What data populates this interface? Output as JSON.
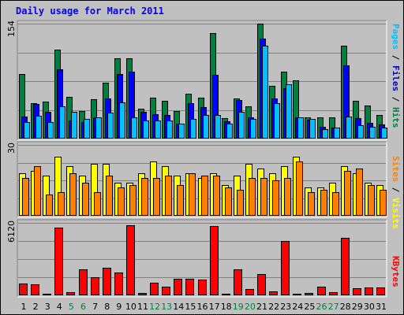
{
  "title": "Daily usage for March 2011",
  "panels": {
    "top": {
      "ymax_label": "154",
      "side_label": [
        {
          "text": "Pages",
          "color": "#00c0ff"
        },
        {
          "text": " / ",
          "color": "#000000"
        },
        {
          "text": "Files",
          "color": "#0000c0"
        },
        {
          "text": " / ",
          "color": "#000000"
        },
        {
          "text": "Hits",
          "color": "#008040"
        }
      ]
    },
    "middle": {
      "ymax_label": "30",
      "side_label": [
        {
          "text": "Sites",
          "color": "#ff8000"
        },
        {
          "text": " / ",
          "color": "#000000"
        },
        {
          "text": "Visits",
          "color": "#ffff00"
        }
      ]
    },
    "bottom": {
      "ymax_label": "6120",
      "side_label": [
        {
          "text": "KBytes",
          "color": "#ff0000"
        }
      ]
    }
  },
  "colors": {
    "hits": "#008040",
    "files": "#0000ff",
    "pages": "#00c0ff",
    "visits": "#ffff00",
    "sites": "#ff8000",
    "kbytes": "#ff0000",
    "day_label": "#000000",
    "weekend_label": "#008040",
    "grid": "#808080",
    "plot_bg": "#c0c0c0"
  },
  "chart_data": [
    {
      "type": "bar",
      "panel": "top",
      "categories": [
        "1",
        "2",
        "3",
        "4",
        "5",
        "6",
        "7",
        "8",
        "9",
        "10",
        "11",
        "12",
        "13",
        "14",
        "15",
        "16",
        "17",
        "18",
        "19",
        "20",
        "21",
        "22",
        "23",
        "24",
        "25",
        "26",
        "27",
        "28",
        "29",
        "30",
        "31"
      ],
      "weekend_categories": [
        "5",
        "6",
        "12",
        "13",
        "19",
        "20",
        "26",
        "27"
      ],
      "ylim": [
        0,
        154
      ],
      "ytick_label": "154",
      "grid": true,
      "series": [
        {
          "name": "Hits",
          "key": "hits",
          "values": [
            86,
            47,
            50,
            119,
            56,
            37,
            53,
            75,
            108,
            108,
            40,
            55,
            51,
            37,
            60,
            55,
            141,
            27,
            54,
            43,
            154,
            71,
            90,
            78,
            29,
            28,
            28,
            124,
            51,
            44,
            32
          ]
        },
        {
          "name": "Files",
          "key": "files",
          "values": [
            30,
            46,
            36,
            93,
            24,
            22,
            28,
            54,
            86,
            90,
            36,
            33,
            32,
            20,
            47,
            42,
            85,
            23,
            52,
            28,
            134,
            54,
            67,
            28,
            25,
            16,
            15,
            98,
            27,
            21,
            19
          ]
        },
        {
          "name": "Pages",
          "key": "pages",
          "values": [
            22,
            31,
            22,
            43,
            36,
            26,
            28,
            35,
            48,
            29,
            24,
            24,
            24,
            20,
            26,
            32,
            32,
            20,
            36,
            26,
            124,
            47,
            73,
            28,
            26,
            13,
            15,
            30,
            18,
            16,
            15
          ]
        }
      ]
    },
    {
      "type": "bar",
      "panel": "middle",
      "categories": [
        "1",
        "2",
        "3",
        "4",
        "5",
        "6",
        "7",
        "8",
        "9",
        "10",
        "11",
        "12",
        "13",
        "14",
        "15",
        "16",
        "17",
        "18",
        "19",
        "20",
        "21",
        "22",
        "23",
        "24",
        "25",
        "26",
        "27",
        "28",
        "29",
        "30",
        "31"
      ],
      "ylim": [
        0,
        30
      ],
      "ytick_label": "30",
      "grid": true,
      "series": [
        {
          "name": "Visits",
          "key": "visits",
          "values": [
            18,
            19,
            17,
            25,
            21,
            17,
            22,
            22,
            14,
            14,
            18,
            23,
            21,
            17,
            18,
            16,
            18,
            13,
            17,
            22,
            20,
            18,
            21,
            25,
            12,
            12,
            14,
            21,
            18,
            14,
            13
          ]
        },
        {
          "name": "Sites",
          "key": "sites",
          "values": [
            16,
            21,
            9,
            10,
            18,
            14,
            10,
            17,
            12,
            13,
            16,
            16,
            17,
            13,
            18,
            17,
            17,
            12,
            11,
            16,
            16,
            15,
            16,
            23,
            10,
            11,
            10,
            19,
            20,
            13,
            11
          ]
        }
      ]
    },
    {
      "type": "bar",
      "panel": "bottom",
      "categories": [
        "1",
        "2",
        "3",
        "4",
        "5",
        "6",
        "7",
        "8",
        "9",
        "10",
        "11",
        "12",
        "13",
        "14",
        "15",
        "16",
        "17",
        "18",
        "19",
        "20",
        "21",
        "22",
        "23",
        "24",
        "25",
        "26",
        "27",
        "28",
        "29",
        "30",
        "31"
      ],
      "ylim": [
        0,
        6120
      ],
      "ytick_label": "6120",
      "grid": true,
      "series": [
        {
          "name": "KBytes",
          "key": "kbytes",
          "values": [
            970,
            900,
            130,
            5750,
            280,
            2220,
            1510,
            2300,
            1960,
            5920,
            170,
            1050,
            730,
            1420,
            1420,
            1320,
            5830,
            110,
            2220,
            540,
            1810,
            300,
            4570,
            100,
            190,
            710,
            260,
            4850,
            620,
            690,
            640
          ]
        }
      ]
    }
  ]
}
